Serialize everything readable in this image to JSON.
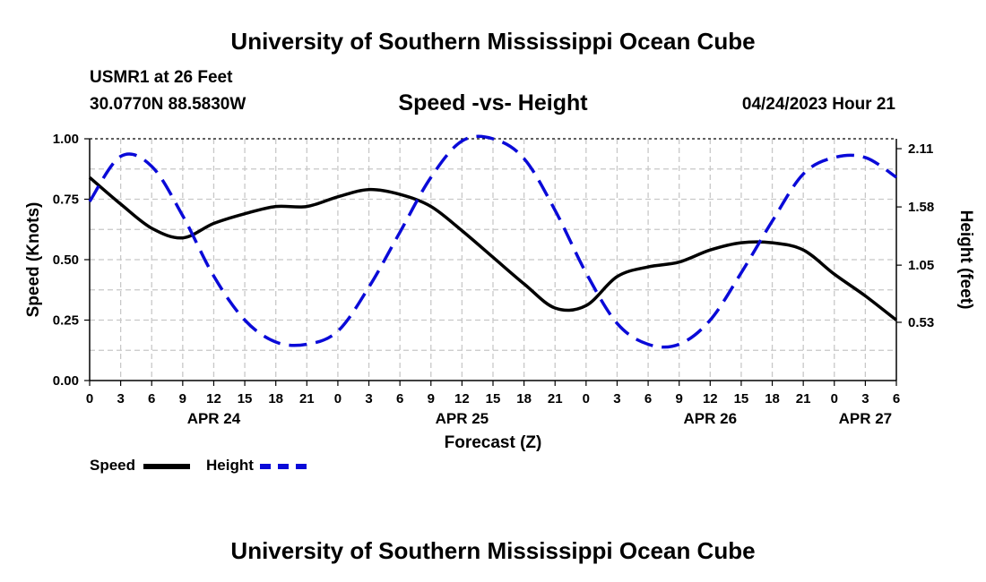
{
  "header": {
    "title": "University of Southern Mississippi Ocean Cube",
    "station": "USMR1 at 26 Feet",
    "coordinates": "30.0770N  88.5830W",
    "subtitle": "Speed -vs- Height",
    "datetime": "04/24/2023 Hour 21"
  },
  "footer": {
    "title": "University of Southern Mississippi Ocean Cube"
  },
  "legend": {
    "items": [
      {
        "label": "Speed",
        "color": "#000000",
        "style": "solid"
      },
      {
        "label": "Height",
        "color": "#0a0ad8",
        "style": "dashed"
      }
    ]
  },
  "chart_data": {
    "type": "line",
    "title": "Speed -vs- Height",
    "xlabel": "Forecast (Z)",
    "ylabel": "Speed (Knots)",
    "y2label": "Height (feet)",
    "x_range_hours": [
      0,
      78
    ],
    "x_start": "04/24/2023 00Z",
    "x_tick_labels": [
      "0",
      "3",
      "6",
      "9",
      "12",
      "15",
      "18",
      "21",
      "0",
      "3",
      "6",
      "9",
      "12",
      "15",
      "18",
      "21",
      "0",
      "3",
      "6",
      "9",
      "12",
      "15",
      "18",
      "21",
      "0",
      "3",
      "6"
    ],
    "date_labels": [
      {
        "label": "APR 24",
        "hour": 12
      },
      {
        "label": "APR 25",
        "hour": 36
      },
      {
        "label": "APR 26",
        "hour": 60
      },
      {
        "label": "APR 27",
        "hour": 75
      }
    ],
    "ylim": [
      0,
      1.0
    ],
    "y_ticks": [
      "0.00",
      "0.25",
      "0.50",
      "0.75",
      "1.00"
    ],
    "y2lim": [
      0.0,
      2.2
    ],
    "y2_ticks": [
      {
        "label": "0.53",
        "value": 0.53
      },
      {
        "label": "1.05",
        "value": 1.05
      },
      {
        "label": "1.58",
        "value": 1.58
      },
      {
        "label": "2.11",
        "value": 2.11
      }
    ],
    "grid": true,
    "series": [
      {
        "name": "Speed",
        "axis": "left",
        "color": "#000000",
        "x": [
          0,
          3,
          6,
          9,
          12,
          15,
          18,
          21,
          24,
          27,
          30,
          33,
          36,
          39,
          42,
          45,
          48,
          51,
          54,
          57,
          60,
          63,
          66,
          69,
          72,
          75,
          78
        ],
        "values": [
          0.84,
          0.73,
          0.63,
          0.59,
          0.65,
          0.69,
          0.72,
          0.72,
          0.76,
          0.79,
          0.77,
          0.72,
          0.62,
          0.51,
          0.4,
          0.3,
          0.31,
          0.43,
          0.47,
          0.49,
          0.54,
          0.57,
          0.57,
          0.54,
          0.44,
          0.35,
          0.25
        ]
      },
      {
        "name": "Height",
        "axis": "right",
        "color": "#0a0ad8",
        "x": [
          0,
          3,
          6,
          9,
          12,
          15,
          18,
          21,
          24,
          27,
          30,
          33,
          36,
          39,
          42,
          45,
          48,
          51,
          54,
          57,
          60,
          63,
          66,
          69,
          72,
          75,
          78
        ],
        "values": [
          1.63,
          2.04,
          1.95,
          1.5,
          0.95,
          0.55,
          0.35,
          0.33,
          0.45,
          0.85,
          1.35,
          1.85,
          2.18,
          2.2,
          2.02,
          1.55,
          0.98,
          0.52,
          0.33,
          0.33,
          0.55,
          0.98,
          1.45,
          1.88,
          2.03,
          2.03,
          1.85
        ]
      }
    ]
  }
}
